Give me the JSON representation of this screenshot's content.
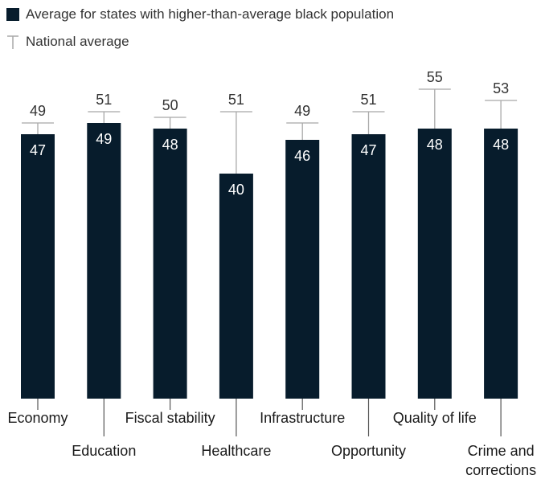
{
  "chart_data": {
    "type": "bar",
    "categories": [
      "Economy",
      "Education",
      "Fiscal stability",
      "Healthcare",
      "Infrastructure",
      "Opportunity",
      "Quality of life",
      "Crime and corrections"
    ],
    "series": [
      {
        "name": "Average for states with higher-than-average black population",
        "values": [
          47,
          49,
          48,
          40,
          46,
          47,
          48,
          48
        ]
      },
      {
        "name": "National average",
        "values": [
          49,
          51,
          50,
          51,
          49,
          51,
          55,
          53
        ]
      }
    ],
    "ylim": [
      0,
      55
    ],
    "legend_position": "top-left",
    "grid": false,
    "colors": {
      "bar": "#071c2c",
      "marker": "#a8a8a8",
      "label_on_bar": "#ffffff",
      "label_above": "#333333"
    }
  },
  "legend": {
    "bar_label": "Average for states with higher-than-average black population",
    "marker_label": "National average"
  }
}
